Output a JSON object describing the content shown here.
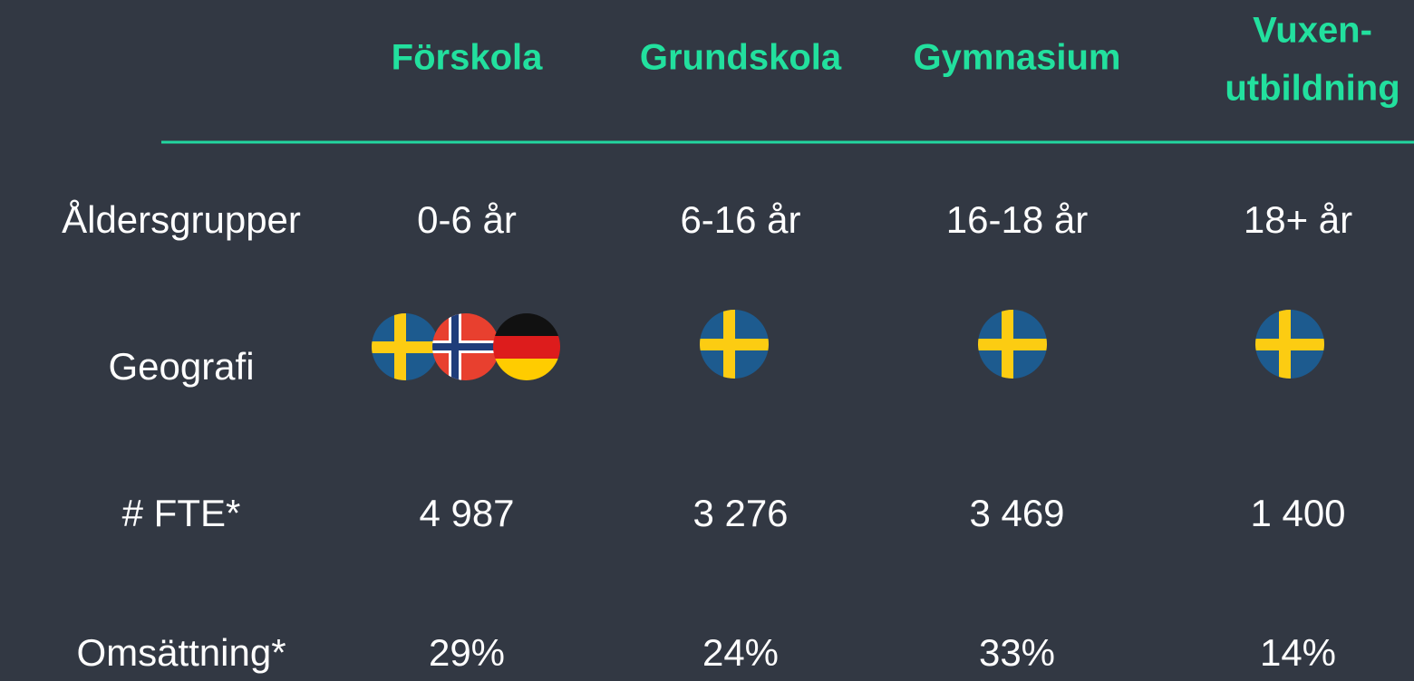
{
  "table": {
    "columns": [
      {
        "lines": [
          "Förskola"
        ]
      },
      {
        "lines": [
          "Grundskola"
        ]
      },
      {
        "lines": [
          "Gymnasium"
        ]
      },
      {
        "lines": [
          "Vuxen-",
          "utbildning"
        ]
      }
    ],
    "rows": [
      {
        "label": "Åldersgrupper",
        "cells": [
          "0-6 år",
          "6-16 år",
          "16-18 år",
          "18+ år"
        ]
      },
      {
        "label": "Geografi"
      },
      {
        "label": "# FTE*",
        "cells": [
          "4 987",
          "3 276",
          "3 469",
          "1 400"
        ]
      },
      {
        "label": "Omsättning*",
        "cells": [
          "29%",
          "24%",
          "33%",
          "14%"
        ]
      }
    ]
  }
}
